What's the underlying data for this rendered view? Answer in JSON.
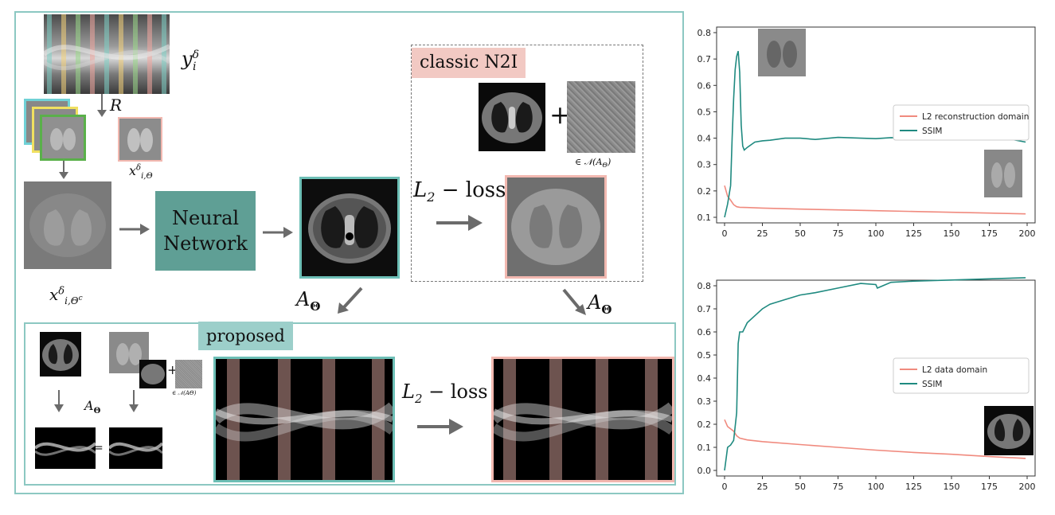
{
  "colors": {
    "teal": "#1f8a80",
    "teal_light": "#8cc8c2",
    "salmon": "#f08a7e",
    "pink_fill": "#f2c9c3",
    "arrow": "#6b6b6b"
  },
  "diagram": {
    "y_label": "y",
    "y_sup": "δ",
    "y_sub": "i",
    "r_label": "R",
    "x_theta_label": "x",
    "x_theta_sup": "δ",
    "x_theta_sub": "i,Θ",
    "x_thetac_label": "x",
    "x_thetac_sup": "δ",
    "x_thetac_sub": "i,Θ",
    "x_thetac_subsup": "c",
    "nn_label_line1": "Neural",
    "nn_label_line2": "Network",
    "classic_tag": "classic N2I",
    "plus_sign": "+",
    "null_space_label": "∈ 𝒩(A",
    "null_space_theta": "Θ",
    "null_space_close": ")",
    "loss_L": "L",
    "loss_sub": "2",
    "loss_text": " − loss",
    "a_theta_left": "A",
    "a_theta_left_sub": "Θ",
    "a_theta_right": "A",
    "a_theta_right_sub": "Θ",
    "proposed_tag": "proposed",
    "small_a_theta": "A",
    "small_a_theta_sub": "Θ",
    "equals": "=",
    "small_plus": "+",
    "small_null": "∈ 𝒩(AΘ)",
    "loss2_L": "L",
    "loss2_sub": "2",
    "loss2_text": " − loss"
  },
  "chart_data": [
    {
      "type": "line",
      "ylim": [
        0.1,
        0.8
      ],
      "xlim": [
        0,
        200
      ],
      "xticks": [
        0,
        25,
        50,
        75,
        100,
        125,
        150,
        175,
        200
      ],
      "yticks": [
        0.1,
        0.2,
        0.3,
        0.4,
        0.5,
        0.6,
        0.7,
        0.8
      ],
      "legend_position": "center-right",
      "series": [
        {
          "name": "L2 reconstruction domain",
          "color": "#f08a7e",
          "x": [
            0,
            2,
            4,
            6,
            8,
            10,
            15,
            25,
            50,
            75,
            100,
            125,
            150,
            175,
            199
          ],
          "y": [
            0.22,
            0.18,
            0.165,
            0.148,
            0.14,
            0.138,
            0.137,
            0.135,
            0.131,
            0.128,
            0.125,
            0.122,
            0.119,
            0.116,
            0.113
          ]
        },
        {
          "name": "SSIM",
          "color": "#1f8a80",
          "x": [
            0,
            2,
            4,
            5,
            6,
            7,
            8,
            9,
            10,
            11,
            12,
            13,
            15,
            20,
            25,
            30,
            40,
            50,
            60,
            75,
            90,
            100,
            110,
            125,
            140,
            150,
            160,
            175,
            190,
            199
          ],
          "y": [
            0.1,
            0.15,
            0.22,
            0.4,
            0.55,
            0.66,
            0.71,
            0.73,
            0.65,
            0.45,
            0.37,
            0.355,
            0.365,
            0.385,
            0.39,
            0.392,
            0.4,
            0.4,
            0.395,
            0.403,
            0.4,
            0.398,
            0.402,
            0.4,
            0.397,
            0.4,
            0.405,
            0.398,
            0.395,
            0.385
          ]
        }
      ]
    },
    {
      "type": "line",
      "ylim": [
        0.0,
        0.8
      ],
      "xlim": [
        0,
        200
      ],
      "xticks": [
        0,
        25,
        50,
        75,
        100,
        125,
        150,
        175,
        200
      ],
      "yticks": [
        0.0,
        0.1,
        0.2,
        0.3,
        0.4,
        0.5,
        0.6,
        0.7,
        0.8
      ],
      "legend_position": "center-right",
      "series": [
        {
          "name": "L2 data domain",
          "color": "#f08a7e",
          "x": [
            0,
            2,
            4,
            6,
            8,
            10,
            15,
            25,
            50,
            75,
            100,
            125,
            150,
            175,
            199
          ],
          "y": [
            0.22,
            0.19,
            0.18,
            0.17,
            0.15,
            0.14,
            0.132,
            0.125,
            0.112,
            0.1,
            0.088,
            0.078,
            0.07,
            0.06,
            0.052
          ]
        },
        {
          "name": "SSIM",
          "color": "#1f8a80",
          "x": [
            0,
            2,
            4,
            6,
            8,
            9,
            10,
            12,
            15,
            20,
            25,
            30,
            40,
            50,
            60,
            75,
            90,
            100,
            101,
            110,
            125,
            150,
            175,
            199
          ],
          "y": [
            0.0,
            0.1,
            0.11,
            0.13,
            0.25,
            0.55,
            0.6,
            0.6,
            0.64,
            0.67,
            0.7,
            0.72,
            0.74,
            0.76,
            0.77,
            0.79,
            0.81,
            0.805,
            0.79,
            0.815,
            0.82,
            0.825,
            0.83,
            0.835
          ]
        }
      ]
    }
  ]
}
